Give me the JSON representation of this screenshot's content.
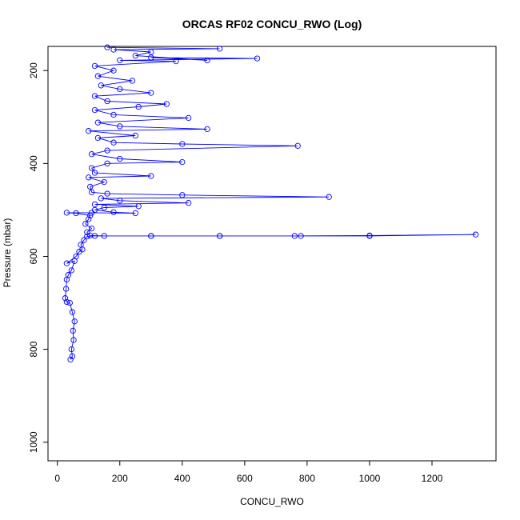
{
  "chart_data": {
    "type": "line",
    "title": "ORCAS RF02 CONCU_RWO (Log)",
    "xlabel": "CONCU_RWO",
    "ylabel": "Pressure (mbar)",
    "xlim": [
      -30,
      1405
    ],
    "ylim": [
      1040,
      148
    ],
    "y_axis_inverted": true,
    "x_ticks": [
      0,
      200,
      400,
      600,
      800,
      1000,
      1200
    ],
    "y_ticks": [
      200,
      400,
      600,
      800,
      1000
    ],
    "grid": false,
    "legend": "none",
    "line_color": "#0000ff",
    "marker": "open-circle",
    "series": [
      {
        "points": [
          [
            42,
            822
          ],
          [
            48,
            815
          ],
          [
            45,
            800
          ],
          [
            52,
            780
          ],
          [
            50,
            760
          ],
          [
            55,
            740
          ],
          [
            48,
            720
          ],
          [
            40,
            700
          ],
          [
            30,
            698
          ],
          [
            25,
            690
          ],
          [
            28,
            670
          ],
          [
            30,
            650
          ],
          [
            35,
            640
          ],
          [
            45,
            630
          ],
          [
            55,
            610
          ],
          [
            30,
            615
          ],
          [
            60,
            600
          ],
          [
            70,
            590
          ],
          [
            80,
            585
          ],
          [
            75,
            575
          ],
          [
            85,
            565
          ],
          [
            95,
            557
          ],
          [
            120,
            556
          ],
          [
            300,
            556
          ],
          [
            520,
            556
          ],
          [
            780,
            556
          ],
          [
            1000,
            556
          ],
          [
            1340,
            553
          ],
          [
            1000,
            555
          ],
          [
            760,
            556
          ],
          [
            520,
            556
          ],
          [
            300,
            556
          ],
          [
            150,
            556
          ],
          [
            105,
            555
          ],
          [
            95,
            548
          ],
          [
            110,
            540
          ],
          [
            90,
            530
          ],
          [
            100,
            520
          ],
          [
            105,
            512
          ],
          [
            60,
            507
          ],
          [
            30,
            506
          ],
          [
            110,
            506
          ],
          [
            250,
            507
          ],
          [
            180,
            505
          ],
          [
            120,
            500
          ],
          [
            150,
            495
          ],
          [
            260,
            492
          ],
          [
            120,
            488
          ],
          [
            420,
            485
          ],
          [
            200,
            480
          ],
          [
            140,
            475
          ],
          [
            870,
            472
          ],
          [
            400,
            468
          ],
          [
            160,
            465
          ],
          [
            110,
            462
          ],
          [
            105,
            450
          ],
          [
            150,
            440
          ],
          [
            100,
            430
          ],
          [
            300,
            427
          ],
          [
            120,
            420
          ],
          [
            110,
            410
          ],
          [
            160,
            400
          ],
          [
            400,
            397
          ],
          [
            200,
            390
          ],
          [
            110,
            380
          ],
          [
            160,
            372
          ],
          [
            770,
            362
          ],
          [
            400,
            358
          ],
          [
            180,
            355
          ],
          [
            130,
            345
          ],
          [
            250,
            340
          ],
          [
            100,
            330
          ],
          [
            480,
            326
          ],
          [
            200,
            320
          ],
          [
            130,
            312
          ],
          [
            420,
            302
          ],
          [
            180,
            295
          ],
          [
            120,
            285
          ],
          [
            260,
            278
          ],
          [
            350,
            272
          ],
          [
            160,
            266
          ],
          [
            120,
            255
          ],
          [
            300,
            248
          ],
          [
            200,
            240
          ],
          [
            140,
            232
          ],
          [
            240,
            222
          ],
          [
            130,
            212
          ],
          [
            180,
            200
          ],
          [
            120,
            190
          ],
          [
            380,
            180
          ],
          [
            200,
            178
          ],
          [
            640,
            174
          ],
          [
            300,
            172
          ],
          [
            480,
            178
          ],
          [
            250,
            168
          ],
          [
            300,
            160
          ],
          [
            180,
            155
          ],
          [
            520,
            153
          ],
          [
            160,
            150
          ]
        ]
      }
    ]
  }
}
